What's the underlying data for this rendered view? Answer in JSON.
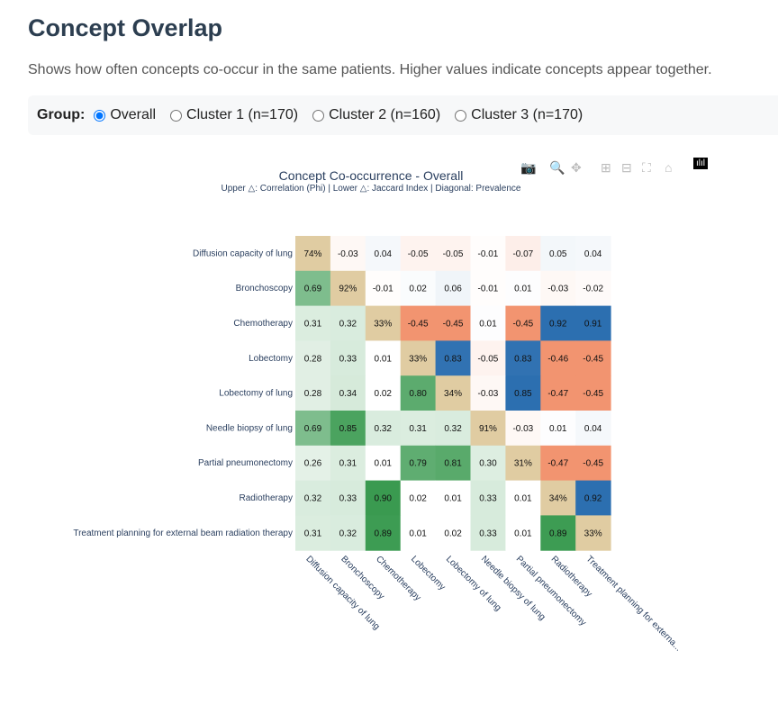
{
  "page": {
    "title": "Concept Overlap",
    "description": "Shows how often concepts co-occur in the same patients. Higher values indicate concepts appear together."
  },
  "group_selector": {
    "label": "Group:",
    "options": [
      "Overall",
      "Cluster 1 (n=170)",
      "Cluster 2 (n=160)",
      "Cluster 3 (n=170)"
    ],
    "selected": "Overall"
  },
  "toolbar": {
    "icons": [
      "camera-icon",
      "zoom-icon",
      "pan-icon",
      "zoom-in-icon",
      "zoom-out-icon",
      "autoscale-icon",
      "home-icon",
      "plotly-logo-icon"
    ]
  },
  "chart_data": {
    "type": "heatmap",
    "title": "Concept Co-occurrence - Overall",
    "subtitle": "Upper △: Correlation (Phi) | Lower △: Jaccard Index | Diagonal: Prevalence",
    "rows": [
      "Diffusion capacity of lung",
      "Bronchoscopy",
      "Chemotherapy",
      "Lobectomy",
      "Lobectomy of lung",
      "Needle biopsy of lung",
      "Partial pneumonectomy",
      "Radiotherapy",
      "Treatment planning for external beam radiation therapy"
    ],
    "columns": [
      "Diffusion capacity of lung",
      "Bronchoscopy",
      "Chemotherapy",
      "Lobectomy",
      "Lobectomy of lung",
      "Needle biopsy of lung",
      "Partial pneumonectomy",
      "Radiotherapy",
      "Treatment planning for externa..."
    ],
    "cells": [
      [
        "74%",
        "-0.03",
        "0.04",
        "-0.05",
        "-0.05",
        "-0.01",
        "-0.07",
        "0.05",
        "0.04"
      ],
      [
        "0.69",
        "92%",
        "-0.01",
        "0.02",
        "0.06",
        "-0.01",
        "0.01",
        "-0.03",
        "-0.02"
      ],
      [
        "0.31",
        "0.32",
        "33%",
        "-0.45",
        "-0.45",
        "0.01",
        "-0.45",
        "0.92",
        "0.91"
      ],
      [
        "0.28",
        "0.33",
        "0.01",
        "33%",
        "0.83",
        "-0.05",
        "0.83",
        "-0.46",
        "-0.45"
      ],
      [
        "0.28",
        "0.34",
        "0.02",
        "0.80",
        "34%",
        "-0.03",
        "0.85",
        "-0.47",
        "-0.45"
      ],
      [
        "0.69",
        "0.85",
        "0.32",
        "0.31",
        "0.32",
        "91%",
        "-0.03",
        "0.01",
        "0.04"
      ],
      [
        "0.26",
        "0.31",
        "0.01",
        "0.79",
        "0.81",
        "0.30",
        "31%",
        "-0.47",
        "-0.45"
      ],
      [
        "0.32",
        "0.33",
        "0.90",
        "0.02",
        "0.01",
        "0.33",
        "0.01",
        "34%",
        "0.92"
      ],
      [
        "0.31",
        "0.32",
        "0.89",
        "0.01",
        "0.02",
        "0.33",
        "0.01",
        "0.89",
        "33%"
      ]
    ],
    "colors": {
      "diagonal": "#e0cca2",
      "positive_phi": "#2c6fb0",
      "negative_phi": "#f29470",
      "jaccard": "#3a9a50"
    }
  }
}
